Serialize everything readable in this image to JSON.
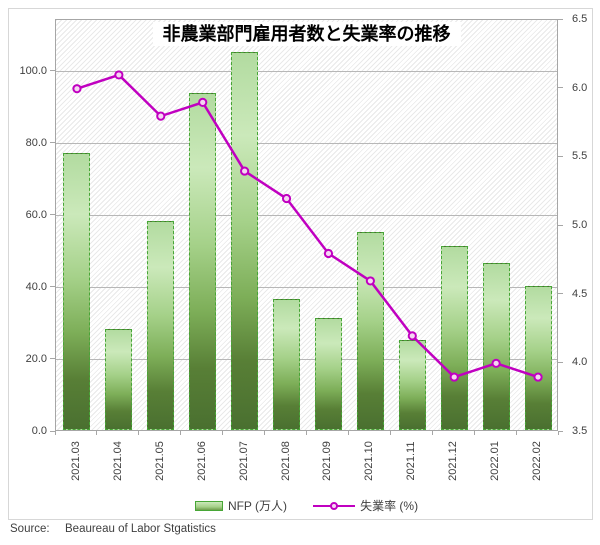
{
  "title": "非農業部門雇用者数と失業率の推移",
  "source": {
    "label": "Source:",
    "text": "Beaureau of Labor Stgatistics"
  },
  "colors": {
    "line": "#c000c0",
    "marker_fill": "#f5d6f2",
    "bar_border": "#47a636",
    "bar_gradient_top": "#b2dba0",
    "bar_gradient_light": "#cbe9ba",
    "bar_gradient_bottom": "#4a7030",
    "gridline": "#b7b7b7",
    "axis": "#a6a6a6",
    "text": "#404040",
    "title_text": "#000000"
  },
  "chart_data": {
    "type": "bar",
    "title": "非農業部門雇用者数と失業率の推移",
    "categories": [
      "2021.03",
      "2021.04",
      "2021.05",
      "2021.06",
      "2021.07",
      "2021.08",
      "2021.09",
      "2021.10",
      "2021.11",
      "2021.12",
      "2022.01",
      "2022.02"
    ],
    "series": [
      {
        "name": "NFP (万人)",
        "type": "bar",
        "axis": "left",
        "values": [
          77,
          28,
          58,
          93.5,
          105,
          36.5,
          31,
          55,
          25,
          51,
          46.5,
          40
        ]
      },
      {
        "name": "失業率 (%)",
        "type": "line",
        "axis": "right",
        "values": [
          6.0,
          6.1,
          5.8,
          5.9,
          5.4,
          5.2,
          4.8,
          4.6,
          4.2,
          3.9,
          4.0,
          3.9
        ]
      }
    ],
    "left_axis": {
      "min": 0,
      "max": 114.4,
      "tick_labels": [
        "0.0",
        "20.0",
        "40.0",
        "60.0",
        "80.0",
        "100.0"
      ],
      "tick_values": [
        0,
        20,
        40,
        60,
        80,
        100
      ],
      "grid_interval": 20
    },
    "right_axis": {
      "min": 3.5,
      "max": 6.5,
      "tick_labels": [
        "3.5",
        "4.0",
        "4.5",
        "5.0",
        "5.5",
        "6.0",
        "6.5"
      ],
      "tick_values": [
        3.5,
        4.0,
        4.5,
        5.0,
        5.5,
        6.0,
        6.5
      ]
    },
    "grid": true,
    "plot_background": "diagonal-hatch",
    "legend_position": "bottom",
    "x_label_rotation": -90
  }
}
